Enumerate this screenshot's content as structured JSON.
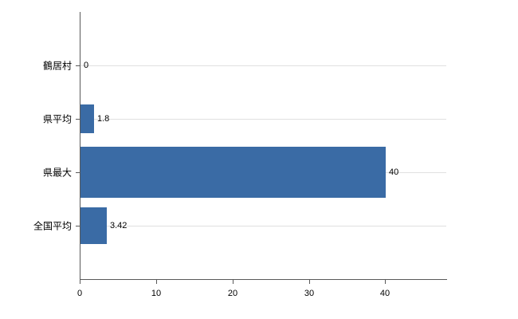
{
  "chart_data": {
    "type": "bar",
    "orientation": "horizontal",
    "title": "",
    "xlabel": "",
    "ylabel": "",
    "categories": [
      "鶴居村",
      "県平均",
      "県最大",
      "全国平均"
    ],
    "values": [
      0,
      1.8,
      40,
      3.42
    ],
    "value_labels": [
      "0",
      "1.8",
      "40",
      "3.42"
    ],
    "xlim": [
      0,
      48
    ],
    "xticks": [
      0,
      10,
      20,
      30,
      40
    ],
    "xtick_labels": [
      "0",
      "10",
      "20",
      "30",
      "40"
    ],
    "grid": true,
    "legend": "none",
    "bar_color": "#3a6ba5",
    "axis_color": "#595959",
    "grid_color": "#e0e0e0",
    "bar_thickness_px": [
      0,
      36,
      64,
      46
    ]
  }
}
